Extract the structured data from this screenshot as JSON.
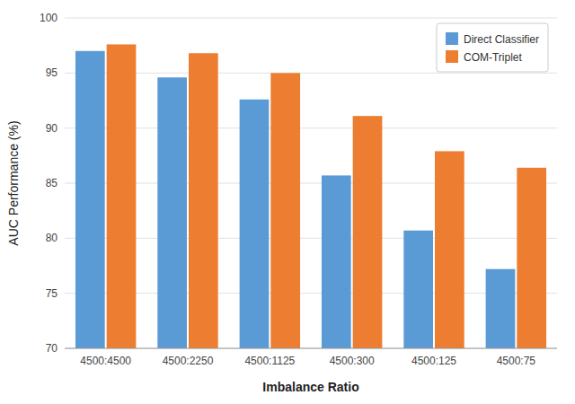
{
  "chart_data": {
    "type": "bar",
    "xlabel": "Imbalance Ratio",
    "ylabel": "AUC Performance (%)",
    "categories": [
      "4500:4500",
      "4500:2250",
      "4500:1125",
      "4500:300",
      "4500:125",
      "4500:75"
    ],
    "series": [
      {
        "name": "Direct Classifier",
        "color": "#5B9BD5",
        "values": [
          97.0,
          94.6,
          92.6,
          85.7,
          80.7,
          77.2
        ]
      },
      {
        "name": "COM-Triplet",
        "color": "#ED7D31",
        "values": [
          97.6,
          96.8,
          95.0,
          91.1,
          87.9,
          86.4
        ]
      }
    ],
    "ylim": [
      70,
      100
    ],
    "yticks": [
      70,
      75,
      80,
      85,
      90,
      95,
      100
    ],
    "grid": true,
    "legend": "upper right"
  }
}
